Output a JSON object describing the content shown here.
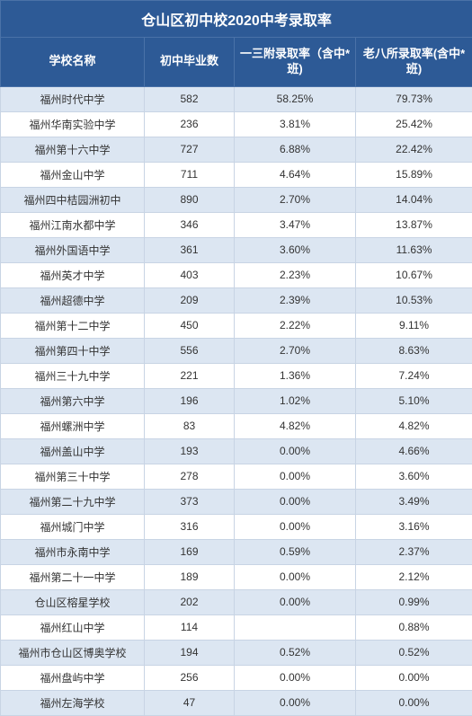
{
  "title": "仓山区初中校2020中考录取率",
  "columns": [
    "学校名称",
    "初中毕业数",
    "一三附录取率（含中*班)",
    "老八所录取率(含中*班)"
  ],
  "colors": {
    "header_bg": "#2d5a96",
    "header_fg": "#ffffff",
    "row_even_bg": "#dce6f2",
    "row_odd_bg": "#ffffff",
    "border": "#c8d4e4",
    "text": "#333333"
  },
  "font": {
    "title_size": 16,
    "header_size": 13,
    "body_size": 12
  },
  "rows": [
    [
      "福州时代中学",
      "582",
      "58.25%",
      "79.73%"
    ],
    [
      "福州华南实验中学",
      "236",
      "3.81%",
      "25.42%"
    ],
    [
      "福州第十六中学",
      "727",
      "6.88%",
      "22.42%"
    ],
    [
      "福州金山中学",
      "711",
      "4.64%",
      "15.89%"
    ],
    [
      "福州四中桔园洲初中",
      "890",
      "2.70%",
      "14.04%"
    ],
    [
      "福州江南水都中学",
      "346",
      "3.47%",
      "13.87%"
    ],
    [
      "福州外国语中学",
      "361",
      "3.60%",
      "11.63%"
    ],
    [
      "福州英才中学",
      "403",
      "2.23%",
      "10.67%"
    ],
    [
      "福州超德中学",
      "209",
      "2.39%",
      "10.53%"
    ],
    [
      "福州第十二中学",
      "450",
      "2.22%",
      "9.11%"
    ],
    [
      "福州第四十中学",
      "556",
      "2.70%",
      "8.63%"
    ],
    [
      "福州三十九中学",
      "221",
      "1.36%",
      "7.24%"
    ],
    [
      "福州第六中学",
      "196",
      "1.02%",
      "5.10%"
    ],
    [
      "福州螺洲中学",
      "83",
      "4.82%",
      "4.82%"
    ],
    [
      "福州盖山中学",
      "193",
      "0.00%",
      "4.66%"
    ],
    [
      "福州第三十中学",
      "278",
      "0.00%",
      "3.60%"
    ],
    [
      "福州第二十九中学",
      "373",
      "0.00%",
      "3.49%"
    ],
    [
      "福州城门中学",
      "316",
      "0.00%",
      "3.16%"
    ],
    [
      "福州市永南中学",
      "169",
      "0.59%",
      "2.37%"
    ],
    [
      "福州第二十一中学",
      "189",
      "0.00%",
      "2.12%"
    ],
    [
      "仓山区榕星学校",
      "202",
      "0.00%",
      "0.99%"
    ],
    [
      "福州红山中学",
      "114",
      "",
      "0.88%"
    ],
    [
      "福州市仓山区博奥学校",
      "194",
      "0.52%",
      "0.52%"
    ],
    [
      "福州盘屿中学",
      "256",
      "0.00%",
      "0.00%"
    ],
    [
      "福州左海学校",
      "47",
      "0.00%",
      "0.00%"
    ]
  ]
}
